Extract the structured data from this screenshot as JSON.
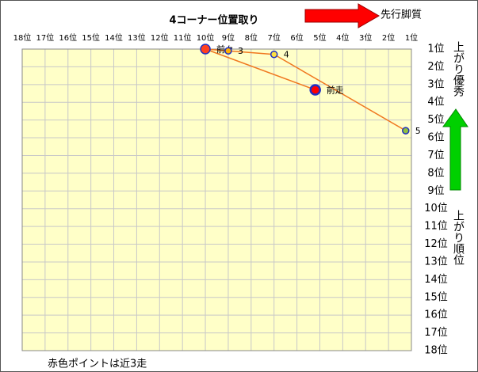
{
  "chart_data": {
    "type": "line",
    "title": "4コーナー位置取り",
    "annotations": {
      "arrow_right": "先行脚質",
      "arrow_up": "上がり優秀",
      "y_axis": "上がり順位",
      "footer": "赤色ポイントは近3走"
    },
    "xlim": [
      18,
      1
    ],
    "ylim": [
      1,
      18
    ],
    "grid": true,
    "xticks": [
      {
        "value": 18,
        "label": "18位"
      },
      {
        "value": 17,
        "label": "17位"
      },
      {
        "value": 16,
        "label": "16位"
      },
      {
        "value": 15,
        "label": "15位"
      },
      {
        "value": 14,
        "label": "14位"
      },
      {
        "value": 13,
        "label": "13位"
      },
      {
        "value": 12,
        "label": "12位"
      },
      {
        "value": 11,
        "label": "11位"
      },
      {
        "value": 10,
        "label": "10位"
      },
      {
        "value": 9,
        "label": "9位"
      },
      {
        "value": 8,
        "label": "8位"
      },
      {
        "value": 7,
        "label": "7位"
      },
      {
        "value": 6,
        "label": "6位"
      },
      {
        "value": 5,
        "label": "5位"
      },
      {
        "value": 4,
        "label": "4位"
      },
      {
        "value": 3,
        "label": "3位"
      },
      {
        "value": 2,
        "label": "2位"
      },
      {
        "value": 1,
        "label": "1位"
      }
    ],
    "yticks": [
      {
        "value": 1,
        "label": "1位"
      },
      {
        "value": 2,
        "label": "2位"
      },
      {
        "value": 3,
        "label": "3位"
      },
      {
        "value": 4,
        "label": "4位"
      },
      {
        "value": 5,
        "label": "5位"
      },
      {
        "value": 6,
        "label": "6位"
      },
      {
        "value": 7,
        "label": "7位"
      },
      {
        "value": 8,
        "label": "8位"
      },
      {
        "value": 9,
        "label": "9位"
      },
      {
        "value": 10,
        "label": "10位"
      },
      {
        "value": 11,
        "label": "11位"
      },
      {
        "value": 12,
        "label": "12位"
      },
      {
        "value": 13,
        "label": "13位"
      },
      {
        "value": 14,
        "label": "14位"
      },
      {
        "value": 15,
        "label": "15位"
      },
      {
        "value": 16,
        "label": "16位"
      },
      {
        "value": 17,
        "label": "17位"
      },
      {
        "value": 18,
        "label": "18位"
      }
    ],
    "series": [
      {
        "line_color": "#f07820",
        "labels": [
          "前走",
          "前々",
          "3",
          "4",
          "5"
        ],
        "x": [
          5.2,
          10,
          9,
          7,
          1.25
        ],
        "values": [
          3.3,
          1,
          1.1,
          1.3,
          5.6
        ],
        "colors": [
          "#ff0000",
          "#ff4020",
          "#ffb000",
          "#ffe040",
          "#90c040"
        ]
      }
    ]
  }
}
